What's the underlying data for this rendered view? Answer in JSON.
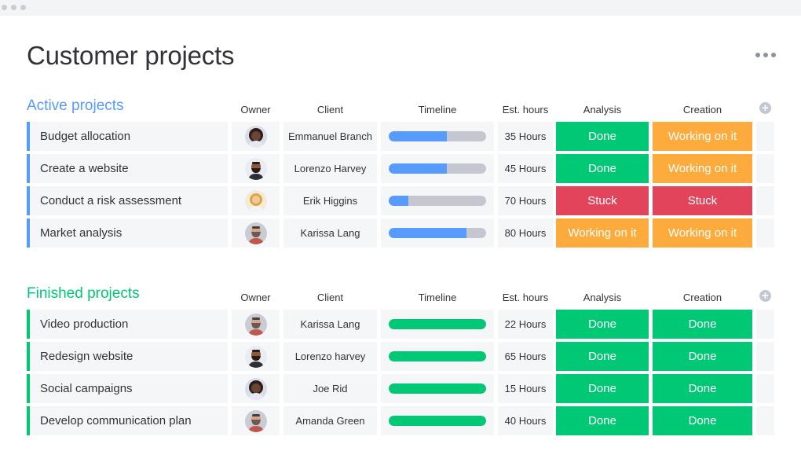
{
  "page": {
    "title": "Customer projects"
  },
  "colors": {
    "done": "#00c875",
    "working": "#fdab3d",
    "stuck": "#e2445c",
    "active_group": "#579bfc",
    "finished_group": "#00c875",
    "timeline_active": "#579bfc",
    "timeline_done": "#00c875"
  },
  "columns": {
    "owner": "Owner",
    "client": "Client",
    "timeline": "Timeline",
    "hours": "Est. hours",
    "analysis": "Analysis",
    "creation": "Creation"
  },
  "groups": [
    {
      "title": "Active projects",
      "color": "#579bfc",
      "rows": [
        {
          "name": "Budget allocation",
          "owner_avatar": "avatar-woman-dark-hair",
          "client": "Emmanuel Branch",
          "timeline_progress": 0.6,
          "hours": "35 Hours",
          "analysis": "Done",
          "creation": "Working on it"
        },
        {
          "name": "Create a website",
          "owner_avatar": "avatar-man-beard",
          "client": "Lorenzo Harvey",
          "timeline_progress": 0.6,
          "hours": "45 Hours",
          "analysis": "Done",
          "creation": "Working on it"
        },
        {
          "name": "Conduct a risk assessment",
          "owner_avatar": "avatar-woman-blonde",
          "client": "Erik Higgins",
          "timeline_progress": 0.2,
          "hours": "70 Hours",
          "analysis": "Stuck",
          "creation": "Stuck"
        },
        {
          "name": "Market analysis",
          "owner_avatar": "avatar-man-gray-beard",
          "client": "Karissa Lang",
          "timeline_progress": 0.8,
          "hours": "80 Hours",
          "analysis": "Working on it",
          "creation": "Working on it"
        }
      ]
    },
    {
      "title": "Finished projects",
      "color": "#00c875",
      "rows": [
        {
          "name": "Video production",
          "owner_avatar": "avatar-man-gray-beard",
          "client": "Karissa Lang",
          "timeline_progress": 1.0,
          "hours": "22 Hours",
          "analysis": "Done",
          "creation": "Done"
        },
        {
          "name": "Redesign website",
          "owner_avatar": "avatar-man-beard",
          "client": "Lorenzo harvey",
          "timeline_progress": 1.0,
          "hours": "65 Hours",
          "analysis": "Done",
          "creation": "Done"
        },
        {
          "name": "Social campaigns",
          "owner_avatar": "avatar-woman-dark-hair",
          "client": "Joe Rid",
          "timeline_progress": 1.0,
          "hours": "15 Hours",
          "analysis": "Done",
          "creation": "Done"
        },
        {
          "name": "Develop communication plan",
          "owner_avatar": "avatar-man-gray-beard",
          "client": "Amanda Green",
          "timeline_progress": 1.0,
          "hours": "40 Hours",
          "analysis": "Done",
          "creation": "Done"
        }
      ]
    }
  ]
}
